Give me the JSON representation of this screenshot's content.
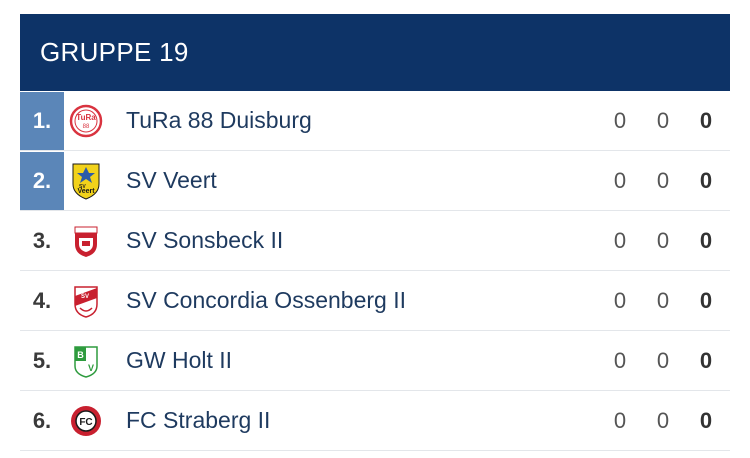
{
  "group": {
    "title": "GRUPPE 19"
  },
  "rows": [
    {
      "rank": "1.",
      "team": "TuRa 88 Duisburg",
      "logo": "tura-88-crest-icon",
      "a": "0",
      "b": "0",
      "pts": "0",
      "highlight": true
    },
    {
      "rank": "2.",
      "team": "SV Veert",
      "logo": "sv-veert-crest-icon",
      "a": "0",
      "b": "0",
      "pts": "0",
      "highlight": true
    },
    {
      "rank": "3.",
      "team": "SV Sonsbeck II",
      "logo": "sv-sonsbeck-crest-icon",
      "a": "0",
      "b": "0",
      "pts": "0",
      "highlight": false
    },
    {
      "rank": "4.",
      "team": "SV Concordia Ossenberg II",
      "logo": "sv-concordia-crest-icon",
      "a": "0",
      "b": "0",
      "pts": "0",
      "highlight": false
    },
    {
      "rank": "5.",
      "team": "GW Holt II",
      "logo": "gw-holt-crest-icon",
      "a": "0",
      "b": "0",
      "pts": "0",
      "highlight": false
    },
    {
      "rank": "6.",
      "team": "FC Straberg II",
      "logo": "fc-straberg-crest-icon",
      "a": "0",
      "b": "0",
      "pts": "0",
      "highlight": false
    }
  ],
  "colors": {
    "header_bg": "#0d3367",
    "highlight": "#5b86b8"
  }
}
